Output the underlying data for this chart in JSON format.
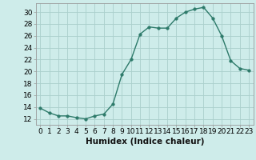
{
  "x": [
    0,
    1,
    2,
    3,
    4,
    5,
    6,
    7,
    8,
    9,
    10,
    11,
    12,
    13,
    14,
    15,
    16,
    17,
    18,
    19,
    20,
    21,
    22,
    23
  ],
  "y": [
    13.8,
    13.0,
    12.5,
    12.5,
    12.2,
    12.0,
    12.5,
    12.8,
    14.5,
    19.5,
    22.0,
    26.3,
    27.5,
    27.3,
    27.3,
    29.0,
    30.0,
    30.5,
    30.8,
    29.0,
    26.0,
    21.8,
    20.5,
    20.2
  ],
  "line_color": "#2d7a6a",
  "marker": "o",
  "marker_size": 2.5,
  "bg_color": "#ceecea",
  "grid_color": "#aacfcc",
  "xlabel": "Humidex (Indice chaleur)",
  "ylabel_ticks": [
    12,
    14,
    16,
    18,
    20,
    22,
    24,
    26,
    28,
    30
  ],
  "xlim": [
    -0.5,
    23.5
  ],
  "ylim": [
    11.0,
    31.5
  ],
  "tick_fontsize": 6.5,
  "label_fontsize": 7.5
}
